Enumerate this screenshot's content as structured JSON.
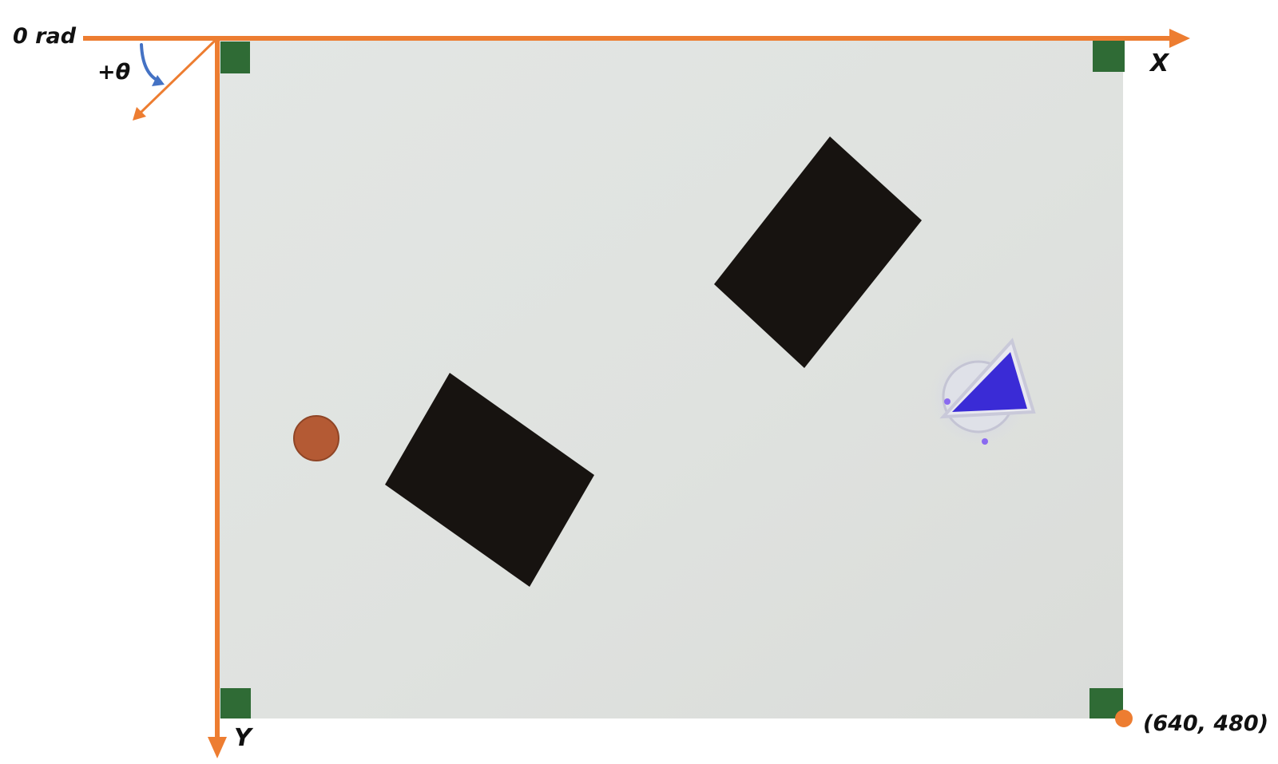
{
  "labels": {
    "zero_angle": "0 rad",
    "positive_theta": "+θ",
    "x_axis": "X",
    "y_axis": "Y",
    "corner_coordinate": "(640, 480)"
  },
  "colors": {
    "axis": "#ED7D31",
    "rotation_arrow": "#4472C4",
    "arena": "#e2e5e2",
    "marker": "#2f6b35",
    "obstacle": "#171310",
    "goal": "#b45a34",
    "robot_triangle": "#3a2bd6"
  }
}
